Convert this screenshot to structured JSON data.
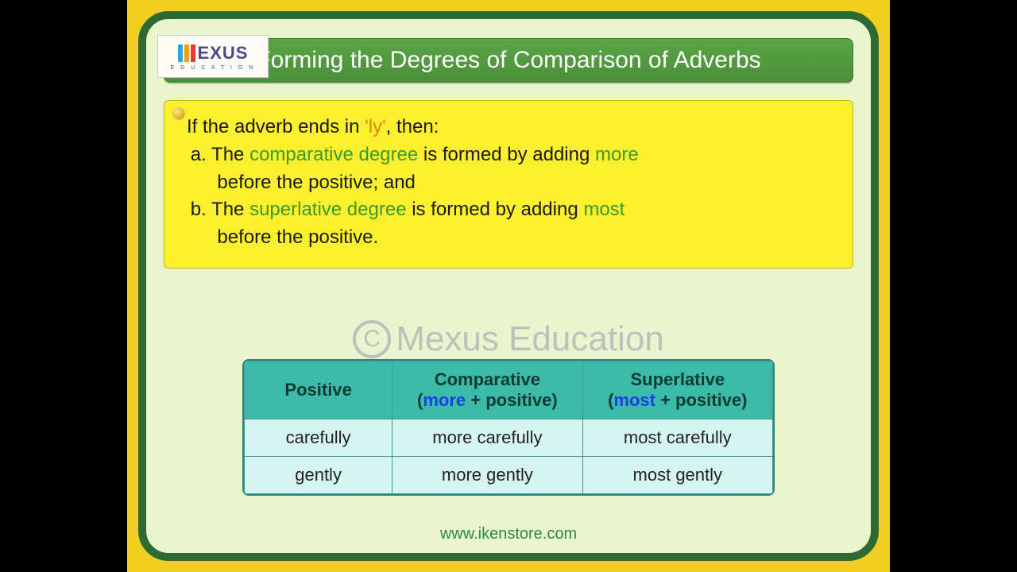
{
  "logo": {
    "brand_letters": "EXUS",
    "sub": "E D U C A T I O N"
  },
  "title": "Forming the Degrees of Comparison of Adverbs",
  "info": {
    "intro_pre": "If the adverb ends in ",
    "intro_hl": "'ly'",
    "intro_post": ", then:",
    "a_label": "a. ",
    "a_pre": "The ",
    "a_hl1": "comparative degree",
    "a_mid": " is formed by adding ",
    "a_hl2": "more",
    "a_line2": "before the positive; and",
    "b_label": "b. ",
    "b_pre": "The ",
    "b_hl1": "superlative degree",
    "b_mid": " is formed by adding ",
    "b_hl2": "most",
    "b_line2": "before the positive."
  },
  "watermark": {
    "c": "C",
    "text": "Mexus Education"
  },
  "table": {
    "headers": {
      "col1": "Positive",
      "col2_top": "Comparative",
      "col2_kw": "more",
      "col2_rest": " + positive)",
      "col3_top": "Superlative",
      "col3_kw": "most",
      "col3_rest": " + positive)"
    },
    "rows": [
      {
        "c1": "carefully",
        "c2": "more carefully",
        "c3": "most carefully"
      },
      {
        "c1": "gently",
        "c2": "more gently",
        "c3": "most gently"
      }
    ],
    "col_widths": [
      "28%",
      "36%",
      "36%"
    ]
  },
  "url": "www.ikenstore.com",
  "colors": {
    "page_bg": "#000000",
    "stage_bg": "#f2cf21",
    "frame_bg": "#eaf5cf",
    "frame_border": "#2e6b33",
    "title_grad_top": "#5aa545",
    "title_grad_bot": "#4b8f3a",
    "info_bg": "#fcef2e",
    "hl_green": "#3c9a2a",
    "hl_orange": "#d88a12",
    "watermark": "#b7b7b7",
    "table_header_bg": "#3bbba8",
    "table_cell_bg": "#d6f5f0",
    "table_border": "#3a9a8f",
    "keyword_blue": "#1b3fe0",
    "url_color": "#2b8a3e"
  }
}
